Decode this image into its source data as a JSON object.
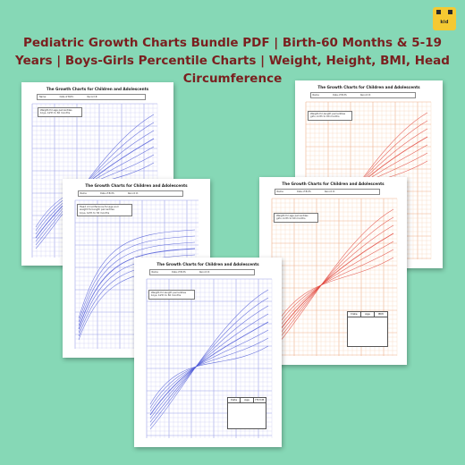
{
  "brand": {
    "logo_text": "kid",
    "accent": "#f5c932"
  },
  "headline": "Pediatric Growth Charts Bundle PDF | Birth-60 Months & 5-19 Years | Boys-Girls Percentile Charts | Weight, Height, BMI, Head Circumference",
  "colors": {
    "background": "#86d8b6",
    "headline": "#7a1f1f",
    "blue_curve": "#4b57d6",
    "red_curve": "#e0433a"
  },
  "sheets": [
    {
      "id": "blue-back",
      "theme": "blue",
      "title": "The Growth Charts for Children and Adolescents",
      "meta": [
        "Name:",
        "Date of Birth:",
        "Record #:"
      ],
      "note": "Weight-for-age percentiles\nboys, birth to 60 months"
    },
    {
      "id": "orange-back",
      "theme": "orange",
      "title": "The Growth Charts for Children and Adolescents",
      "meta": [
        "Name:",
        "Date of Birth:",
        "Record #:"
      ],
      "note": "Weight-for-length percentiles\ngirls, birth to 60 months"
    },
    {
      "id": "blue-mid",
      "theme": "blue",
      "title": "The Growth Charts for Children and Adolescents",
      "meta": [
        "Name:",
        "Date of Birth:",
        "Record #:"
      ],
      "note": "Head circumference-for-age and\nweight-for-length percentiles\nboys, birth to 36 months"
    },
    {
      "id": "orange-front",
      "theme": "orange",
      "title": "The Growth Charts for Children and Adolescents",
      "meta": [
        "Name:",
        "Date of Birth:",
        "Record #:"
      ],
      "note": "Weight-for-age percentiles\ngirls, birth to 60 months",
      "table_headers": [
        "Date",
        "Age",
        "BMI"
      ]
    },
    {
      "id": "blue-front",
      "theme": "blue",
      "title": "The Growth Charts for Children and Adolescents",
      "meta": [
        "Name:",
        "Date of Birth:",
        "Record #:"
      ],
      "note": "Weight-for-length percentiles\nboys, birth to 60 months",
      "table_headers": [
        "Date",
        "Age",
        "HT/CM"
      ]
    }
  ]
}
